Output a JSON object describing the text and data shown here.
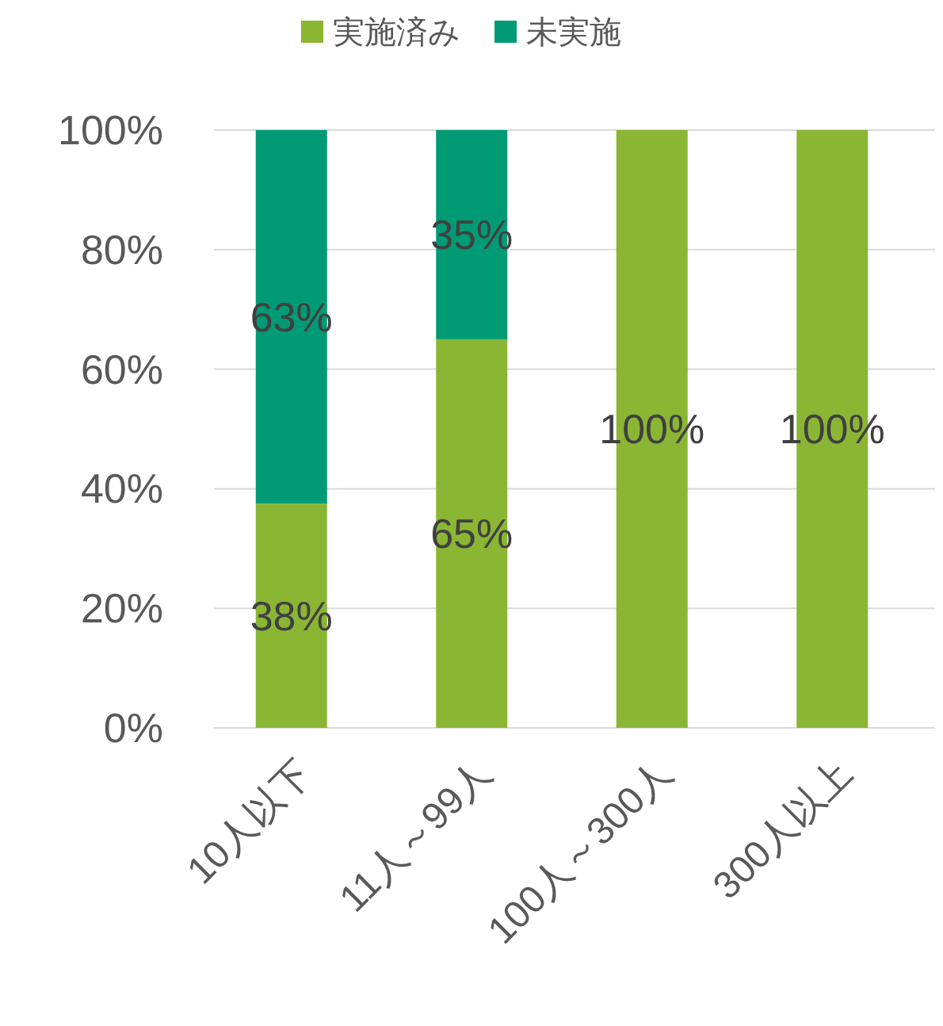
{
  "chart_data": {
    "type": "bar",
    "stacked": true,
    "categories": [
      "10人以下",
      "11人～99人",
      "100人～300人",
      "300人以上"
    ],
    "series": [
      {
        "name": "実施済み",
        "color": "#8bb634",
        "values": [
          37.5,
          65,
          100,
          100
        ],
        "value_labels": [
          "38%",
          "65%",
          "100%",
          "100%"
        ]
      },
      {
        "name": "未実施",
        "color": "#009a75",
        "values": [
          62.5,
          35,
          0,
          0
        ],
        "value_labels": [
          "63%",
          "35%",
          null,
          null
        ]
      }
    ],
    "ylim": [
      0,
      100
    ],
    "yticks": [
      {
        "value": 0,
        "label": "0%"
      },
      {
        "value": 20,
        "label": "20%"
      },
      {
        "value": 40,
        "label": "40%"
      },
      {
        "value": 60,
        "label": "60%"
      },
      {
        "value": 80,
        "label": "80%"
      },
      {
        "value": 100,
        "label": "100%"
      }
    ],
    "grid": "y",
    "legend": "top"
  }
}
